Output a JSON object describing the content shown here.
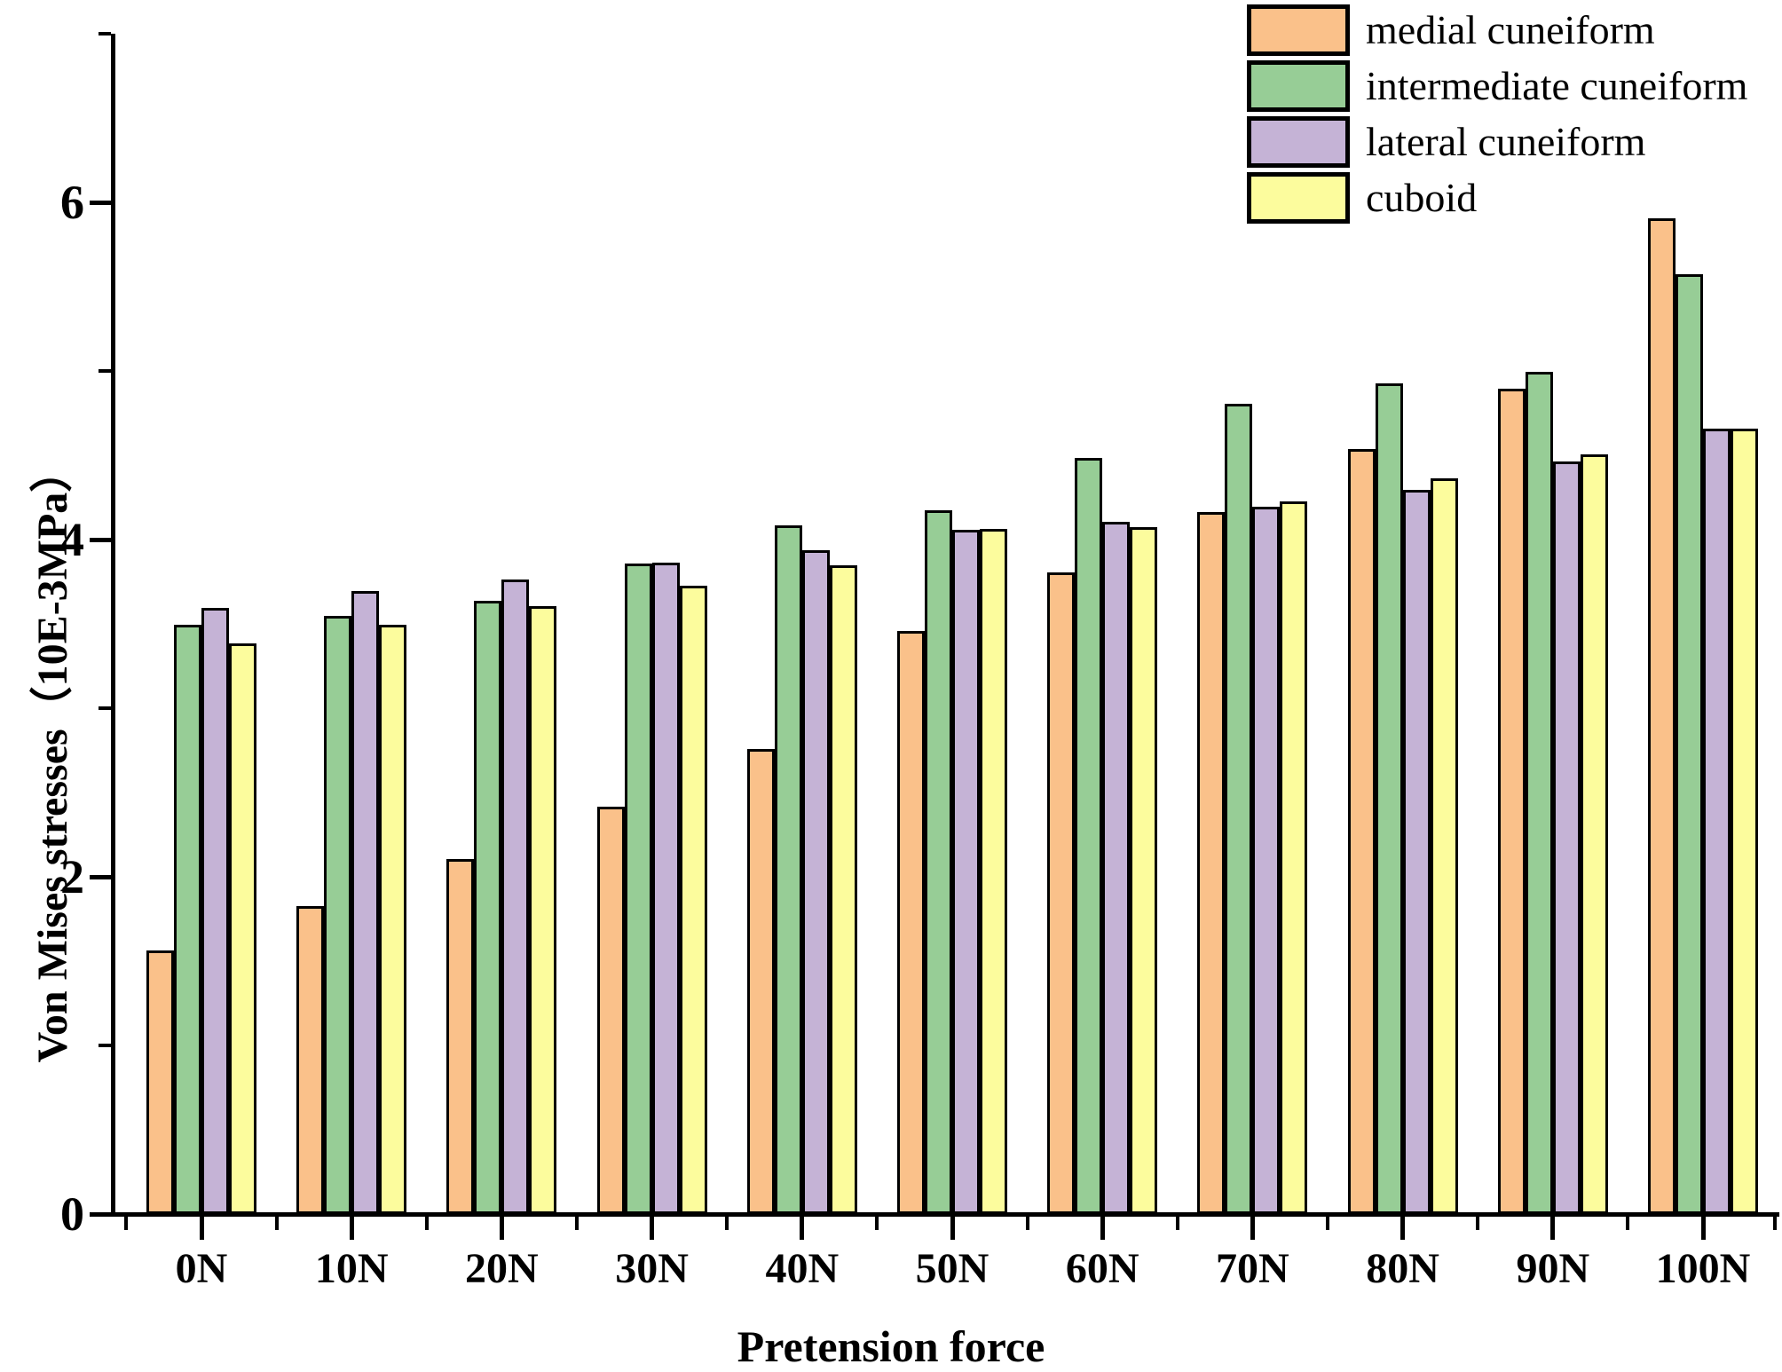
{
  "chart_data": {
    "type": "bar",
    "title": "",
    "xlabel": "Pretension force",
    "ylabel": "Von Mises stresses（10E-3MPa）",
    "categories": [
      "0N",
      "10N",
      "20N",
      "30N",
      "40N",
      "50N",
      "60N",
      "70N",
      "80N",
      "90N",
      "100N"
    ],
    "series": [
      {
        "name": "medial cuneiform",
        "color": "#FAC18A",
        "values": [
          1.55,
          1.81,
          2.09,
          2.4,
          2.74,
          3.44,
          3.79,
          4.15,
          4.52,
          4.88,
          5.89
        ]
      },
      {
        "name": "intermediate cuneiform",
        "color": "#97CD96",
        "values": [
          3.48,
          3.53,
          3.62,
          3.84,
          4.07,
          4.16,
          4.47,
          4.79,
          4.91,
          4.98,
          5.56
        ]
      },
      {
        "name": "lateral cuneiform",
        "color": "#C5B3D6",
        "values": [
          3.58,
          3.68,
          3.75,
          3.85,
          3.92,
          4.04,
          4.09,
          4.18,
          4.28,
          4.45,
          4.64
        ]
      },
      {
        "name": "cuboid",
        "color": "#FCFC9D",
        "values": [
          3.37,
          3.48,
          3.59,
          3.71,
          3.83,
          4.05,
          4.06,
          4.21,
          4.35,
          4.49,
          4.64
        ]
      }
    ],
    "ylim": [
      0,
      7
    ],
    "yticks_major": [
      0,
      2,
      4,
      6
    ],
    "ytick_labels": [
      "0",
      "2",
      "4",
      "6"
    ],
    "yticks_minor": [
      1,
      3,
      5,
      7
    ],
    "grid": false,
    "legend_position": "top-right",
    "bar_border_color": "#000000",
    "axis_color": "#000000",
    "background_color": "#ffffff"
  }
}
